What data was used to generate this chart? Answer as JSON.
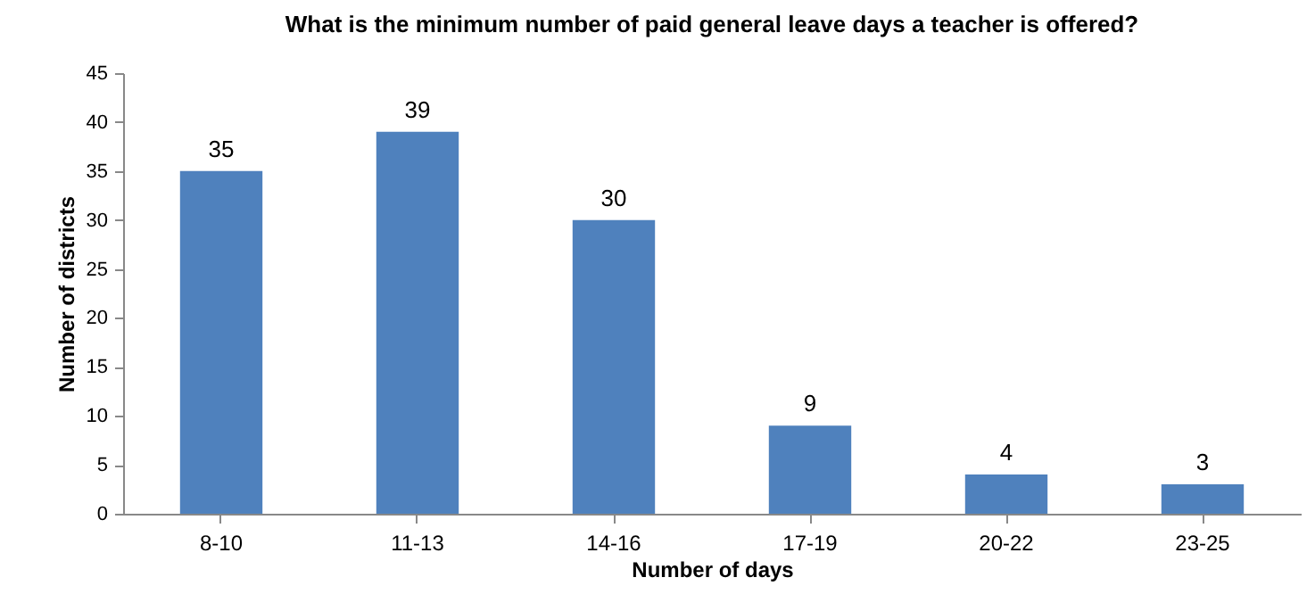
{
  "chart_data": {
    "type": "bar",
    "title": "What is the minimum number of paid general leave days a teacher is offered?",
    "xlabel": "Number of days",
    "ylabel": "Number of districts",
    "categories": [
      "8-10",
      "11-13",
      "14-16",
      "17-19",
      "20-22",
      "23-25"
    ],
    "values": [
      35,
      39,
      30,
      9,
      4,
      3
    ],
    "color": "#4f81bd",
    "ylim": [
      0,
      45
    ],
    "yticks": [
      0,
      5,
      10,
      15,
      20,
      25,
      30,
      35,
      40,
      45
    ],
    "grid": false,
    "data_labels": true
  }
}
